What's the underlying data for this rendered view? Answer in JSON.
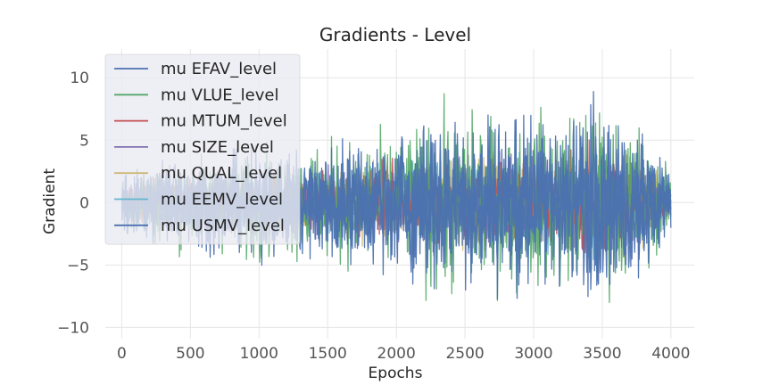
{
  "chart_data": {
    "type": "line",
    "title": "Gradients - Level",
    "xlabel": "Epochs",
    "ylabel": "Gradient",
    "xlim": [
      -120,
      4170
    ],
    "ylim": [
      -10.9,
      12.3
    ],
    "x_ticks": [
      0,
      500,
      1000,
      1500,
      2000,
      2500,
      3000,
      3500,
      4000
    ],
    "x_tick_labels": [
      "0",
      "500",
      "1000",
      "1500",
      "2000",
      "2500",
      "3000",
      "3500",
      "4000"
    ],
    "y_ticks": [
      -10,
      -5,
      0,
      5,
      10
    ],
    "y_tick_labels": [
      "−10",
      "−5",
      "0",
      "5",
      "10"
    ],
    "grid": true,
    "legend_position": "top-left",
    "x_range": [
      0,
      4000
    ],
    "series": [
      {
        "name": "mu EFAV_level",
        "color": "#4c72b0"
      },
      {
        "name": "mu VLUE_level",
        "color": "#55a868"
      },
      {
        "name": "mu MTUM_level",
        "color": "#c44e52"
      },
      {
        "name": "mu SIZE_level",
        "color": "#8172b2"
      },
      {
        "name": "mu QUAL_level",
        "color": "#ccb974"
      },
      {
        "name": "mu EEMV_level",
        "color": "#64b5cd"
      },
      {
        "name": "mu USMV_level",
        "color": "#4c72b0"
      }
    ],
    "envelope_samples": {
      "x": [
        0,
        250,
        500,
        750,
        1000,
        1250,
        1500,
        1750,
        2000,
        2250,
        2350,
        2500,
        2750,
        2850,
        3000,
        3250,
        3350,
        3500,
        3750,
        4000
      ],
      "upper": [
        3.5,
        3.8,
        4.2,
        4.5,
        5.0,
        4.8,
        5.5,
        6.0,
        6.5,
        8.0,
        10.0,
        8.0,
        7.5,
        7.0,
        8.0,
        8.5,
        11.5,
        9.0,
        7.5,
        2.5
      ],
      "lower": [
        -3.5,
        -4.0,
        -4.5,
        -5.0,
        -5.5,
        -5.5,
        -6.0,
        -6.5,
        -7.0,
        -8.0,
        -8.0,
        -8.5,
        -9.0,
        -9.8,
        -9.0,
        -8.5,
        -9.0,
        -8.0,
        -8.0,
        -3.5
      ]
    }
  }
}
